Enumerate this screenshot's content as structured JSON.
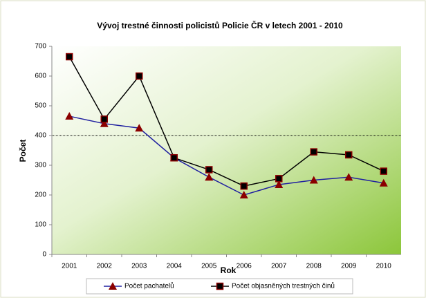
{
  "chart_data": {
    "type": "line",
    "title": "Vývoj trestné činnosti policistů Policie ČR v letech 2001 - 2010",
    "x_label": "Rok",
    "y_label": "Počet",
    "categories": [
      "2001",
      "2002",
      "2003",
      "2004",
      "2005",
      "2006",
      "2007",
      "2008",
      "2009",
      "2010"
    ],
    "series": [
      {
        "name": "Počet pachatelů",
        "color": "#2020a0",
        "marker": "triangle",
        "marker_color": "#8b0000",
        "values": [
          465,
          440,
          425,
          325,
          260,
          200,
          235,
          250,
          260,
          240
        ]
      },
      {
        "name": "Počet objasněných trestných činů",
        "color": "#000000",
        "marker": "square",
        "marker_color": "#8b0000",
        "values": [
          665,
          455,
          600,
          325,
          285,
          230,
          255,
          345,
          335,
          280
        ]
      }
    ],
    "ylim": [
      0,
      700
    ],
    "yticks": [
      0,
      100,
      200,
      300,
      400,
      500,
      600,
      700
    ],
    "reference_line": 400,
    "legend": "bottom"
  }
}
